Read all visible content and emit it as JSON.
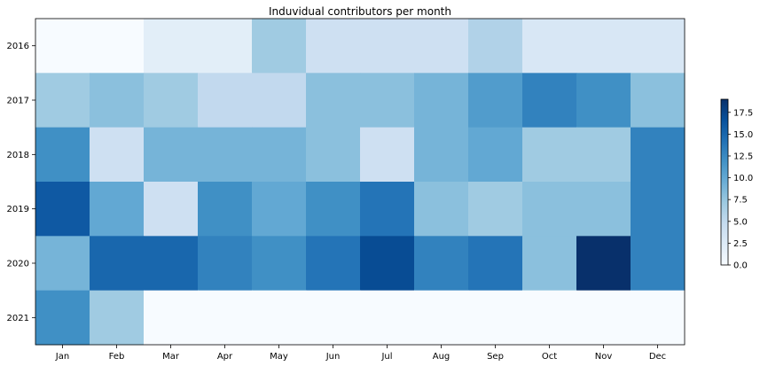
{
  "chart_data": {
    "type": "heatmap",
    "title": "Induvidual contributors per month",
    "xlabel": "",
    "ylabel": "",
    "x_categories": [
      "Jan",
      "Feb",
      "Mar",
      "Apr",
      "May",
      "Jun",
      "Jul",
      "Aug",
      "Sep",
      "Oct",
      "Nov",
      "Dec"
    ],
    "y_categories": [
      "2016",
      "2017",
      "2018",
      "2019",
      "2020",
      "2021"
    ],
    "values": [
      [
        0,
        0,
        2,
        2,
        7,
        4,
        4,
        4,
        6,
        3,
        3,
        3
      ],
      [
        7,
        8,
        7,
        5,
        5,
        8,
        8,
        9,
        11,
        13,
        12,
        8
      ],
      [
        12,
        4,
        9,
        9,
        9,
        8,
        4,
        9,
        10,
        7,
        7,
        13
      ],
      [
        16,
        10,
        4,
        12,
        10,
        12,
        14,
        8,
        7,
        8,
        8,
        13
      ],
      [
        9,
        15,
        15,
        13,
        12,
        14,
        17,
        13,
        14,
        8,
        19,
        13
      ],
      [
        12,
        7,
        0,
        0,
        0,
        0,
        0,
        0,
        0,
        0,
        0,
        0
      ]
    ],
    "colormap": "Blues",
    "colorbar": {
      "range": [
        0,
        19
      ],
      "ticks": [
        "0.0",
        "2.5",
        "5.0",
        "7.5",
        "10.0",
        "12.5",
        "15.0",
        "17.5"
      ]
    },
    "grid": false
  }
}
